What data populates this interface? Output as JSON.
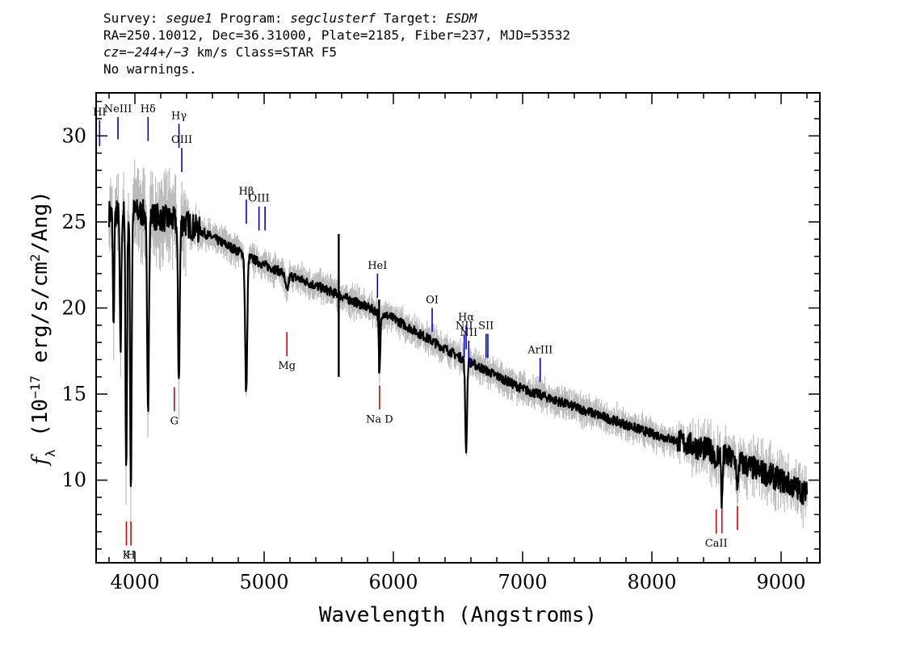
{
  "header": {
    "survey_label": "Survey: ",
    "survey": "segue1",
    "program_label": " Program: ",
    "program": "segclusterf",
    "target_label": " Target: ",
    "target": "ESDM",
    "line2": "RA=250.10012, Dec=36.31000, Plate=2185, Fiber=237, MJD=53532",
    "line3_prefix": "cz=",
    "line3_cz": "−244+/−3",
    "line3_suffix": " km/s Class=STAR F5",
    "line4": "No warnings."
  },
  "chart_data": {
    "type": "line",
    "xlabel": "Wavelength (Angstroms)",
    "ylabel": "f_λ (10^-17 erg/s/cm^2/Ang)",
    "xlim": [
      3700,
      9300
    ],
    "ylim": [
      5.2,
      32.5
    ],
    "x_ticks": [
      4000,
      5000,
      6000,
      7000,
      8000,
      9000
    ],
    "y_ticks": [
      10,
      15,
      20,
      25,
      30
    ],
    "colors": {
      "spectrum": "#000000",
      "error": "#bbbbbb",
      "emission": "#0000cc",
      "absorption": "#dd0000"
    },
    "continuum": [
      [
        3800,
        25.5
      ],
      [
        4000,
        25.6
      ],
      [
        4400,
        24.9
      ],
      [
        5000,
        22.5
      ],
      [
        5500,
        21.0
      ],
      [
        6000,
        19.4
      ],
      [
        6500,
        17.2
      ],
      [
        7000,
        15.3
      ],
      [
        7500,
        14.0
      ],
      [
        8000,
        12.7
      ],
      [
        8500,
        11.6
      ],
      [
        9000,
        10.0
      ],
      [
        9200,
        9.2
      ]
    ],
    "absorption_features": [
      {
        "wave": 3835,
        "depth": 7,
        "width": 5
      },
      {
        "wave": 3889,
        "depth": 8,
        "width": 6
      },
      {
        "wave": 3933,
        "depth": 15,
        "width": 6
      },
      {
        "wave": 3969,
        "depth": 16,
        "width": 6
      },
      {
        "wave": 4101,
        "depth": 11.5,
        "width": 7
      },
      {
        "wave": 4340,
        "depth": 9,
        "width": 7
      },
      {
        "wave": 4861,
        "depth": 8,
        "width": 8
      },
      {
        "wave": 5175,
        "depth": 1.0,
        "width": 12
      },
      {
        "wave": 5893,
        "depth": 3.5,
        "width": 6
      },
      {
        "wave": 6563,
        "depth": 5.2,
        "width": 7
      },
      {
        "wave": 8498,
        "depth": 1.2,
        "width": 5
      },
      {
        "wave": 8542,
        "depth": 3.0,
        "width": 5
      },
      {
        "wave": 8662,
        "depth": 2.0,
        "width": 5
      }
    ],
    "spikes": [
      {
        "wave": 5577,
        "top": 24.3,
        "bottom": 16.0
      },
      {
        "wave": 5890,
        "top": 20.5,
        "bottom": 16.2
      }
    ],
    "emission_lines": [
      {
        "label": "HI",
        "wave": 3727,
        "y_top": 30.9,
        "y_bottom": 29.4
      },
      {
        "label": "NeIII",
        "wave": 3869,
        "y_top": 31.1,
        "y_bottom": 29.8
      },
      {
        "label": "Hδ",
        "wave": 4102,
        "y_top": 31.1,
        "y_bottom": 29.7
      },
      {
        "label": "Hγ",
        "wave": 4341,
        "y_top": 30.7,
        "y_bottom": 29.3
      },
      {
        "label": "OIII",
        "wave": 4363,
        "y_top": 29.3,
        "y_bottom": 27.9
      },
      {
        "label": "Hβ",
        "wave": 4862,
        "y_top": 26.3,
        "y_bottom": 24.9
      },
      {
        "label": "OIII",
        "wave": 4960,
        "y_top": 25.9,
        "y_bottom": 24.5
      },
      {
        "label": "",
        "wave": 5007,
        "y_top": 25.9,
        "y_bottom": 24.5
      },
      {
        "label": "HeI",
        "wave": 5877,
        "y_top": 22.0,
        "y_bottom": 20.6
      },
      {
        "label": "OI",
        "wave": 6300,
        "y_top": 20.0,
        "y_bottom": 18.6
      },
      {
        "label": "NII",
        "wave": 6548,
        "y_top": 18.5,
        "y_bottom": 17.1
      },
      {
        "label": "Hα",
        "wave": 6563,
        "y_top": 19.0,
        "y_bottom": 17.6
      },
      {
        "label": "NII",
        "wave": 6583,
        "y_top": 18.1,
        "y_bottom": 16.7
      },
      {
        "label": "SII",
        "wave": 6717,
        "y_top": 18.5,
        "y_bottom": 17.1
      },
      {
        "label": "",
        "wave": 6731,
        "y_top": 18.5,
        "y_bottom": 17.1
      },
      {
        "label": "ArIII",
        "wave": 7136,
        "y_top": 17.1,
        "y_bottom": 15.7
      }
    ],
    "absorption_lines": [
      {
        "label": "K",
        "wave": 3934,
        "y_top": 7.6,
        "y_bottom": 6.2
      },
      {
        "label": "H",
        "wave": 3969,
        "y_top": 7.6,
        "y_bottom": 6.2
      },
      {
        "label": "G",
        "wave": 4305,
        "y_top": 15.4,
        "y_bottom": 14.0
      },
      {
        "label": "Mg",
        "wave": 5176,
        "y_top": 18.6,
        "y_bottom": 17.2
      },
      {
        "label": "Na D",
        "wave": 5893,
        "y_top": 15.5,
        "y_bottom": 14.1
      },
      {
        "label": "CaII",
        "wave": 8498,
        "y_top": 8.3,
        "y_bottom": 6.9
      },
      {
        "label": "",
        "wave": 8542,
        "y_top": 8.3,
        "y_bottom": 6.9
      },
      {
        "label": "",
        "wave": 8662,
        "y_top": 8.5,
        "y_bottom": 7.1
      }
    ]
  }
}
